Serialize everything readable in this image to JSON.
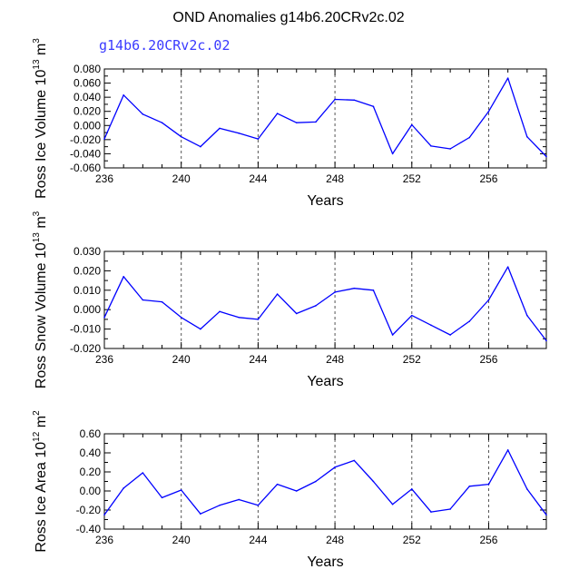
{
  "chart_data": {
    "type": "line",
    "title": "OND Anomalies g14b6.20CRv2c.02",
    "colors": {
      "line": "#0000ff",
      "subtitle": "#3a3aff",
      "axes": "#000000",
      "grid": "#555555"
    },
    "panels": [
      {
        "subtitle": "g14b6.20CRv2c.02",
        "xlabel": "Years",
        "ylabel_pre": "Ross Ice Volume 10",
        "ylabel_sup": "13",
        "ylabel_post": " m",
        "ylabel_sup2": "3",
        "xlim": [
          236,
          259
        ],
        "ylim": [
          -0.06,
          0.08
        ],
        "yticks": [
          -0.06,
          -0.04,
          -0.02,
          0.0,
          0.02,
          0.04,
          0.06,
          0.08
        ],
        "ytick_labels": [
          "-0.060",
          "-0.040",
          "-0.020",
          "0.000",
          "0.020",
          "0.040",
          "0.060",
          "0.080"
        ],
        "xticks": [
          236,
          240,
          244,
          248,
          252,
          256
        ],
        "xtick_labels": [
          "236",
          "240",
          "244",
          "248",
          "252",
          "256"
        ],
        "gridlines_x": [
          240,
          244,
          248,
          252,
          256
        ],
        "x": [
          236,
          237,
          238,
          239,
          240,
          241,
          242,
          243,
          244,
          245,
          246,
          247,
          248,
          249,
          250,
          251,
          252,
          253,
          254,
          255,
          256,
          257,
          258,
          259
        ],
        "values": [
          -0.019,
          0.043,
          0.016,
          0.004,
          -0.016,
          -0.03,
          -0.004,
          -0.011,
          -0.019,
          0.017,
          0.004,
          0.005,
          0.037,
          0.036,
          0.027,
          -0.04,
          0.001,
          -0.029,
          -0.033,
          -0.017,
          0.02,
          0.067,
          -0.016,
          -0.044
        ]
      },
      {
        "subtitle": "",
        "xlabel": "Years",
        "ylabel_pre": "Ross Snow Volume 10",
        "ylabel_sup": "13",
        "ylabel_post": " m",
        "ylabel_sup2": "3",
        "xlim": [
          236,
          259
        ],
        "ylim": [
          -0.02,
          0.03
        ],
        "yticks": [
          -0.02,
          -0.01,
          0.0,
          0.01,
          0.02,
          0.03
        ],
        "ytick_labels": [
          "-0.020",
          "-0.010",
          "0.000",
          "0.010",
          "0.020",
          "0.030"
        ],
        "xticks": [
          236,
          240,
          244,
          248,
          252,
          256
        ],
        "xtick_labels": [
          "236",
          "240",
          "244",
          "248",
          "252",
          "256"
        ],
        "gridlines_x": [
          240,
          244,
          248,
          252,
          256
        ],
        "x": [
          236,
          237,
          238,
          239,
          240,
          241,
          242,
          243,
          244,
          245,
          246,
          247,
          248,
          249,
          250,
          251,
          252,
          253,
          254,
          255,
          256,
          257,
          258,
          259
        ],
        "values": [
          -0.004,
          0.017,
          0.005,
          0.004,
          -0.004,
          -0.01,
          -0.001,
          -0.004,
          -0.005,
          0.008,
          -0.002,
          0.002,
          0.009,
          0.011,
          0.01,
          -0.013,
          -0.003,
          -0.008,
          -0.013,
          -0.006,
          0.005,
          0.022,
          -0.003,
          -0.016
        ]
      },
      {
        "subtitle": "",
        "xlabel": "Years",
        "ylabel_pre": "Ross Ice Area 10",
        "ylabel_sup": "12",
        "ylabel_post": " m",
        "ylabel_sup2": "2",
        "xlim": [
          236,
          259
        ],
        "ylim": [
          -0.4,
          0.6
        ],
        "yticks": [
          -0.4,
          -0.2,
          0.0,
          0.2,
          0.4,
          0.6
        ],
        "ytick_labels": [
          "-0.40",
          "-0.20",
          "0.00",
          "0.20",
          "0.40",
          "0.60"
        ],
        "xticks": [
          236,
          240,
          244,
          248,
          252,
          256
        ],
        "xtick_labels": [
          "236",
          "240",
          "244",
          "248",
          "252",
          "256"
        ],
        "gridlines_x": [
          240,
          244,
          248,
          252,
          256
        ],
        "x": [
          236,
          237,
          238,
          239,
          240,
          241,
          242,
          243,
          244,
          245,
          246,
          247,
          248,
          249,
          250,
          251,
          252,
          253,
          254,
          255,
          256,
          257,
          258,
          259
        ],
        "values": [
          -0.25,
          0.03,
          0.19,
          -0.07,
          0.01,
          -0.24,
          -0.15,
          -0.09,
          -0.15,
          0.07,
          0.0,
          0.1,
          0.25,
          0.32,
          0.1,
          -0.14,
          0.02,
          -0.22,
          -0.19,
          0.05,
          0.07,
          0.43,
          0.02,
          -0.25
        ]
      }
    ]
  }
}
